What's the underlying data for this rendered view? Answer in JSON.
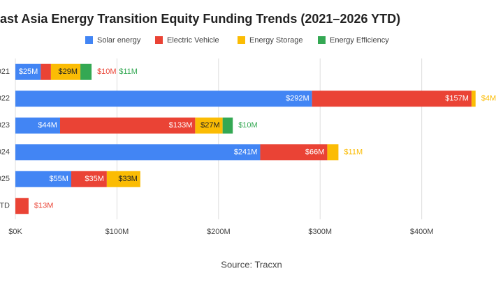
{
  "chart_data": {
    "type": "stacked-horizontal-bar",
    "title": "ast Asia Energy Transition Equity Funding Trends (2021–2026 YTD)",
    "categories": [
      "021",
      "022",
      "023",
      "024",
      "025",
      "YTD"
    ],
    "series": [
      {
        "name": "Solar energy",
        "color": "#4285f4",
        "values": [
          25,
          292,
          44,
          241,
          55,
          null
        ],
        "value_labels": [
          "$25M",
          "$292M",
          "$44M",
          "$241M",
          "$55M",
          null
        ]
      },
      {
        "name": "Electric Vehicle",
        "color": "#ea4335",
        "values": [
          10,
          157,
          133,
          66,
          35,
          13
        ],
        "value_labels": [
          "$10M",
          "$157M",
          "$133M",
          "$66M",
          "$35M",
          "$13M"
        ]
      },
      {
        "name": "Energy Storage",
        "color": "#fbbc04",
        "values": [
          29,
          4,
          27,
          11,
          33,
          null
        ],
        "value_labels": [
          "$29M",
          "$4M",
          "$27M",
          "$11M",
          "$33M",
          null
        ]
      },
      {
        "name": "Energy Efficiency",
        "color": "#34a853",
        "values": [
          11,
          null,
          10,
          null,
          null,
          null
        ],
        "value_labels": [
          "$11M",
          null,
          "$10M",
          null,
          null,
          null
        ]
      }
    ],
    "xlim": [
      0,
      480
    ],
    "xticks": [
      {
        "value": 0,
        "label": "$0K"
      },
      {
        "value": 100,
        "label": "$100M"
      },
      {
        "value": 200,
        "label": "$200M"
      },
      {
        "value": 300,
        "label": "$300M"
      },
      {
        "value": 400,
        "label": "$400M"
      }
    ],
    "grid": true,
    "legend": "top",
    "source": "Source: Tracxn"
  }
}
